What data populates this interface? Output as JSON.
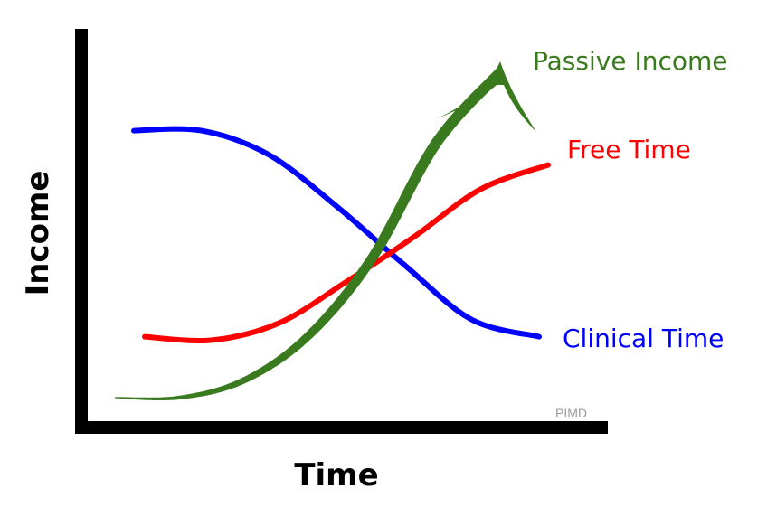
{
  "chart_data": {
    "type": "line",
    "title": "",
    "xlabel": "Time",
    "ylabel": "Income",
    "grid": false,
    "axis_ticks": false,
    "legend": "inline-right",
    "series": [
      {
        "name": "Passive Income",
        "color": "#3a7a1e",
        "style": "arrow",
        "values": [
          0.04,
          0.04,
          0.09,
          0.22,
          0.45,
          0.79,
          1.0
        ]
      },
      {
        "name": "Free Time",
        "color": "#ff0000",
        "values": [
          0.23,
          0.22,
          0.27,
          0.39,
          0.52,
          0.66,
          0.73
        ]
      },
      {
        "name": "Clinical Time",
        "color": "#0000ff",
        "values": [
          0.83,
          0.83,
          0.76,
          0.61,
          0.44,
          0.28,
          0.23
        ]
      }
    ],
    "watermark": "PIMD"
  }
}
